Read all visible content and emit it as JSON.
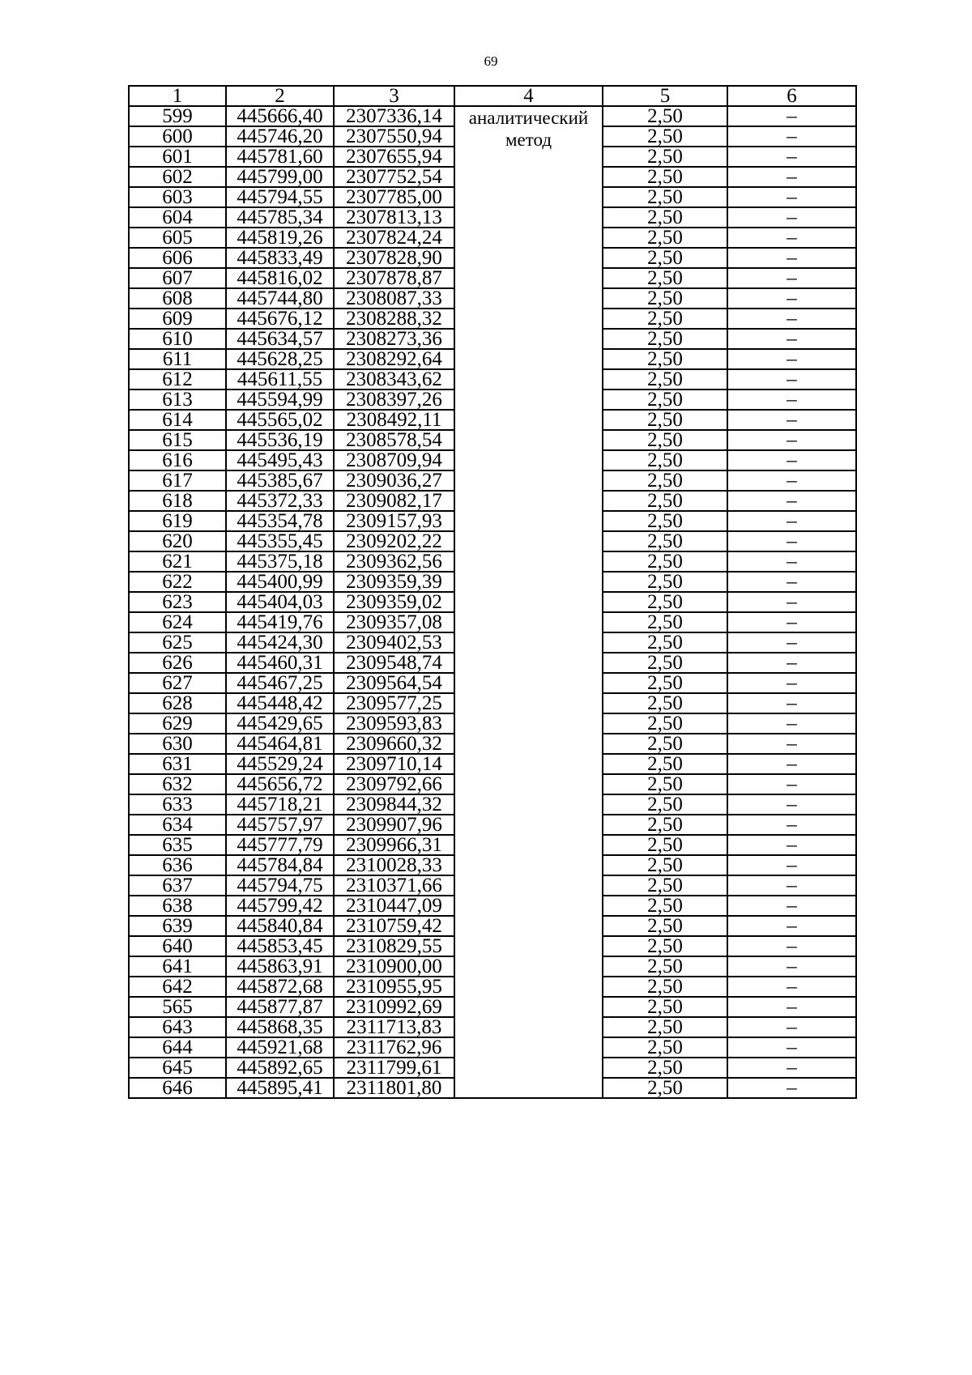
{
  "page_number": "69",
  "headers": [
    "1",
    "2",
    "3",
    "4",
    "5",
    "6"
  ],
  "method": "аналитический метод",
  "rows": [
    [
      "599",
      "445666,40",
      "2307336,14",
      "2,50",
      "–"
    ],
    [
      "600",
      "445746,20",
      "2307550,94",
      "2,50",
      "–"
    ],
    [
      "601",
      "445781,60",
      "2307655,94",
      "2,50",
      "–"
    ],
    [
      "602",
      "445799,00",
      "2307752,54",
      "2,50",
      "–"
    ],
    [
      "603",
      "445794,55",
      "2307785,00",
      "2,50",
      "–"
    ],
    [
      "604",
      "445785,34",
      "2307813,13",
      "2,50",
      "–"
    ],
    [
      "605",
      "445819,26",
      "2307824,24",
      "2,50",
      "–"
    ],
    [
      "606",
      "445833,49",
      "2307828,90",
      "2,50",
      "–"
    ],
    [
      "607",
      "445816,02",
      "2307878,87",
      "2,50",
      "–"
    ],
    [
      "608",
      "445744,80",
      "2308087,33",
      "2,50",
      "–"
    ],
    [
      "609",
      "445676,12",
      "2308288,32",
      "2,50",
      "–"
    ],
    [
      "610",
      "445634,57",
      "2308273,36",
      "2,50",
      "–"
    ],
    [
      "611",
      "445628,25",
      "2308292,64",
      "2,50",
      "–"
    ],
    [
      "612",
      "445611,55",
      "2308343,62",
      "2,50",
      "–"
    ],
    [
      "613",
      "445594,99",
      "2308397,26",
      "2,50",
      "–"
    ],
    [
      "614",
      "445565,02",
      "2308492,11",
      "2,50",
      "–"
    ],
    [
      "615",
      "445536,19",
      "2308578,54",
      "2,50",
      "–"
    ],
    [
      "616",
      "445495,43",
      "2308709,94",
      "2,50",
      "–"
    ],
    [
      "617",
      "445385,67",
      "2309036,27",
      "2,50",
      "–"
    ],
    [
      "618",
      "445372,33",
      "2309082,17",
      "2,50",
      "–"
    ],
    [
      "619",
      "445354,78",
      "2309157,93",
      "2,50",
      "–"
    ],
    [
      "620",
      "445355,45",
      "2309202,22",
      "2,50",
      "–"
    ],
    [
      "621",
      "445375,18",
      "2309362,56",
      "2,50",
      "–"
    ],
    [
      "622",
      "445400,99",
      "2309359,39",
      "2,50",
      "–"
    ],
    [
      "623",
      "445404,03",
      "2309359,02",
      "2,50",
      "–"
    ],
    [
      "624",
      "445419,76",
      "2309357,08",
      "2,50",
      "–"
    ],
    [
      "625",
      "445424,30",
      "2309402,53",
      "2,50",
      "–"
    ],
    [
      "626",
      "445460,31",
      "2309548,74",
      "2,50",
      "–"
    ],
    [
      "627",
      "445467,25",
      "2309564,54",
      "2,50",
      "–"
    ],
    [
      "628",
      "445448,42",
      "2309577,25",
      "2,50",
      "–"
    ],
    [
      "629",
      "445429,65",
      "2309593,83",
      "2,50",
      "–"
    ],
    [
      "630",
      "445464,81",
      "2309660,32",
      "2,50",
      "–"
    ],
    [
      "631",
      "445529,24",
      "2309710,14",
      "2,50",
      "–"
    ],
    [
      "632",
      "445656,72",
      "2309792,66",
      "2,50",
      "–"
    ],
    [
      "633",
      "445718,21",
      "2309844,32",
      "2,50",
      "–"
    ],
    [
      "634",
      "445757,97",
      "2309907,96",
      "2,50",
      "–"
    ],
    [
      "635",
      "445777,79",
      "2309966,31",
      "2,50",
      "–"
    ],
    [
      "636",
      "445784,84",
      "2310028,33",
      "2,50",
      "–"
    ],
    [
      "637",
      "445794,75",
      "2310371,66",
      "2,50",
      "–"
    ],
    [
      "638",
      "445799,42",
      "2310447,09",
      "2,50",
      "–"
    ],
    [
      "639",
      "445840,84",
      "2310759,42",
      "2,50",
      "–"
    ],
    [
      "640",
      "445853,45",
      "2310829,55",
      "2,50",
      "–"
    ],
    [
      "641",
      "445863,91",
      "2310900,00",
      "2,50",
      "–"
    ],
    [
      "642",
      "445872,68",
      "2310955,95",
      "2,50",
      "–"
    ],
    [
      "565",
      "445877,87",
      "2310992,69",
      "2,50",
      "–"
    ],
    [
      "643",
      "445868,35",
      "2311713,83",
      "2,50",
      "–"
    ],
    [
      "644",
      "445921,68",
      "2311762,96",
      "2,50",
      "–"
    ],
    [
      "645",
      "445892,65",
      "2311799,61",
      "2,50",
      "–"
    ],
    [
      "646",
      "445895,41",
      "2311801,80",
      "2,50",
      "–"
    ]
  ]
}
